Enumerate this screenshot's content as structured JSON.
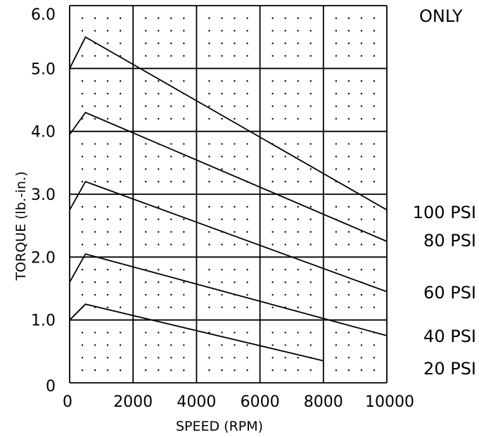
{
  "chart_data": {
    "type": "line",
    "xlabel": "SPEED (RPM)",
    "ylabel": "TORQUE (lb.-in.)",
    "note": "ONLY",
    "xlim": [
      0,
      10000
    ],
    "ylim": [
      0,
      6
    ],
    "x_ticks": [
      "0",
      "2000",
      "4000",
      "6000",
      "8000",
      "10000"
    ],
    "y_ticks": [
      "0",
      "1.0",
      "2.0",
      "3.0",
      "4.0",
      "5.0",
      "6.0"
    ],
    "grid": true,
    "colors": {
      "line": "#000000",
      "dot": "#000000",
      "background": "#ffffff"
    },
    "series": [
      {
        "name": "100 PSI",
        "x": [
          0,
          500,
          10000
        ],
        "y": [
          5.0,
          5.5,
          2.75
        ]
      },
      {
        "name": "80 PSI",
        "x": [
          0,
          500,
          10000
        ],
        "y": [
          3.95,
          4.3,
          2.25
        ]
      },
      {
        "name": "60 PSI",
        "x": [
          0,
          500,
          10000
        ],
        "y": [
          2.75,
          3.2,
          1.45
        ]
      },
      {
        "name": "40 PSI",
        "x": [
          0,
          500,
          10000
        ],
        "y": [
          1.6,
          2.05,
          0.75
        ]
      },
      {
        "name": "20 PSI",
        "x": [
          0,
          500,
          8000
        ],
        "y": [
          1.0,
          1.25,
          0.35
        ]
      }
    ]
  }
}
